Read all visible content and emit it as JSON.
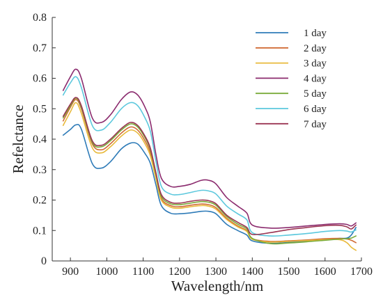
{
  "chart_data": {
    "type": "line",
    "title": "",
    "xlabel": "Wavelength/nm",
    "ylabel": "Refelctance",
    "xlim": [
      850,
      1700
    ],
    "ylim": [
      0,
      0.8
    ],
    "xticks": [
      "900",
      "1000",
      "1100",
      "1200",
      "1300",
      "1400",
      "1500",
      "1600",
      "1700"
    ],
    "yticks": [
      "0",
      "0.1",
      "0.2",
      "0.3",
      "0.4",
      "0.5",
      "0.6",
      "0.7",
      "0.8"
    ],
    "grid": false,
    "legend_position": "top-right",
    "x": [
      880,
      900,
      915,
      930,
      960,
      985,
      1010,
      1040,
      1065,
      1085,
      1105,
      1120,
      1135,
      1150,
      1175,
      1200,
      1230,
      1260,
      1280,
      1300,
      1330,
      1360,
      1385,
      1400,
      1450,
      1500,
      1550,
      1600,
      1640,
      1660,
      1672,
      1685
    ],
    "series": [
      {
        "name": "1 day",
        "color": "#2e7bb8",
        "values": [
          0.413,
          0.432,
          0.447,
          0.433,
          0.32,
          0.305,
          0.326,
          0.368,
          0.387,
          0.384,
          0.353,
          0.32,
          0.25,
          0.182,
          0.157,
          0.155,
          0.158,
          0.163,
          0.163,
          0.155,
          0.12,
          0.1,
          0.085,
          0.066,
          0.058,
          0.061,
          0.065,
          0.07,
          0.074,
          0.075,
          0.085,
          0.11
        ]
      },
      {
        "name": "2 day",
        "color": "#d06a34",
        "values": [
          0.46,
          0.505,
          0.53,
          0.5,
          0.385,
          0.365,
          0.385,
          0.42,
          0.44,
          0.43,
          0.395,
          0.355,
          0.278,
          0.205,
          0.182,
          0.178,
          0.183,
          0.187,
          0.185,
          0.175,
          0.14,
          0.115,
          0.1,
          0.073,
          0.064,
          0.066,
          0.069,
          0.073,
          0.074,
          0.072,
          0.068,
          0.06
        ]
      },
      {
        "name": "3 day",
        "color": "#e8b93a",
        "values": [
          0.445,
          0.49,
          0.52,
          0.485,
          0.372,
          0.355,
          0.375,
          0.41,
          0.43,
          0.42,
          0.385,
          0.345,
          0.27,
          0.2,
          0.177,
          0.173,
          0.178,
          0.182,
          0.18,
          0.17,
          0.136,
          0.112,
          0.097,
          0.071,
          0.062,
          0.064,
          0.067,
          0.07,
          0.07,
          0.06,
          0.045,
          0.035
        ]
      },
      {
        "name": "4 day",
        "color": "#8b2b6e",
        "values": [
          0.56,
          0.605,
          0.63,
          0.6,
          0.47,
          0.455,
          0.48,
          0.53,
          0.555,
          0.545,
          0.505,
          0.455,
          0.35,
          0.272,
          0.245,
          0.245,
          0.252,
          0.265,
          0.265,
          0.253,
          0.208,
          0.18,
          0.157,
          0.118,
          0.108,
          0.11,
          0.115,
          0.12,
          0.122,
          0.12,
          0.115,
          0.125
        ]
      },
      {
        "name": "5 day",
        "color": "#7aab3a",
        "values": [
          0.47,
          0.51,
          0.535,
          0.505,
          0.39,
          0.375,
          0.395,
          0.43,
          0.45,
          0.44,
          0.405,
          0.365,
          0.285,
          0.212,
          0.188,
          0.185,
          0.19,
          0.195,
          0.193,
          0.183,
          0.146,
          0.121,
          0.105,
          0.074,
          0.057,
          0.059,
          0.063,
          0.068,
          0.072,
          0.073,
          0.075,
          0.082
        ]
      },
      {
        "name": "6 day",
        "color": "#5cc8dd",
        "values": [
          0.545,
          0.585,
          0.605,
          0.57,
          0.445,
          0.43,
          0.455,
          0.5,
          0.52,
          0.51,
          0.47,
          0.425,
          0.328,
          0.245,
          0.22,
          0.218,
          0.225,
          0.232,
          0.23,
          0.22,
          0.18,
          0.155,
          0.135,
          0.093,
          0.082,
          0.085,
          0.09,
          0.097,
          0.1,
          0.098,
          0.095,
          0.102
        ]
      },
      {
        "name": "7 day",
        "color": "#9b3553",
        "values": [
          0.475,
          0.515,
          0.537,
          0.51,
          0.395,
          0.38,
          0.4,
          0.435,
          0.455,
          0.445,
          0.41,
          0.37,
          0.29,
          0.218,
          0.193,
          0.19,
          0.196,
          0.2,
          0.198,
          0.188,
          0.15,
          0.127,
          0.11,
          0.087,
          0.093,
          0.103,
          0.11,
          0.116,
          0.117,
          0.112,
          0.105,
          0.118
        ]
      }
    ]
  }
}
